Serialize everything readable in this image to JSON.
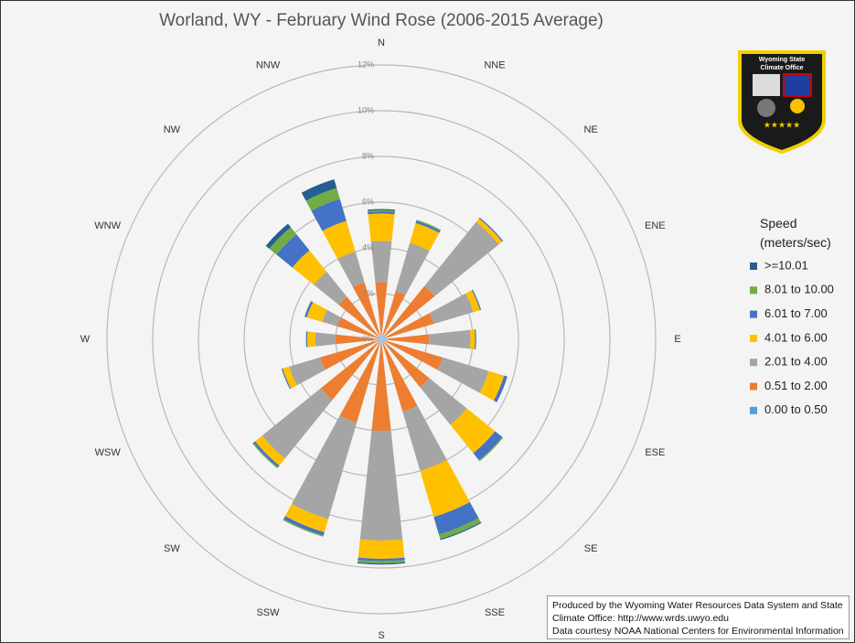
{
  "chart_data": {
    "type": "windrose",
    "title": "Worland, WY - February Wind Rose (2006-2015 Average)",
    "legend_title": "Speed (meters/sec)",
    "categories": [
      "N",
      "NNE",
      "NE",
      "ENE",
      "E",
      "ESE",
      "SE",
      "SSE",
      "S",
      "SSW",
      "SW",
      "WSW",
      "W",
      "WNW",
      "NW",
      "NNW"
    ],
    "rlim": [
      0,
      12
    ],
    "rticks": [
      {
        "value": 0,
        "label": "0%"
      },
      {
        "value": 2,
        "label": "2%"
      },
      {
        "value": 4,
        "label": "4%"
      },
      {
        "value": 6,
        "label": "6%"
      },
      {
        "value": 8,
        "label": "8%"
      },
      {
        "value": 10,
        "label": "10%"
      },
      {
        "value": 12,
        "label": "12%"
      }
    ],
    "grid": true,
    "series": [
      {
        "name": "0.00 to 0.50",
        "color": "#5b9bd5",
        "values": [
          0.2,
          0.2,
          0.2,
          0.2,
          0.2,
          0.2,
          0.2,
          0.2,
          0.2,
          0.2,
          0.2,
          0.2,
          0.2,
          0.2,
          0.2,
          0.2
        ]
      },
      {
        "name": "0.51 to 2.00",
        "color": "#ed7d31",
        "values": [
          2.3,
          2.0,
          2.8,
          2.2,
          1.9,
          2.6,
          2.5,
          3.1,
          3.8,
          3.6,
          3.2,
          2.6,
          1.8,
          1.8,
          2.2,
          2.4
        ]
      },
      {
        "name": "2.01 to 4.00",
        "color": "#a5a5a5",
        "values": [
          1.8,
          2.2,
          3.6,
          1.8,
          1.8,
          2.1,
          2.1,
          2.7,
          4.8,
          4.4,
          3.3,
          1.4,
          0.9,
          0.7,
          1.4,
          1.4
        ]
      },
      {
        "name": "4.01 to 6.00",
        "color": "#ffc000",
        "values": [
          1.2,
          0.9,
          0.2,
          0.3,
          0.2,
          0.7,
          1.6,
          2.1,
          0.8,
          0.6,
          0.4,
          0.3,
          0.35,
          0.7,
          1.2,
          1.4
        ]
      },
      {
        "name": "6.01 to 7.00",
        "color": "#4472c4",
        "values": [
          0.1,
          0.1,
          0.05,
          0.05,
          0.05,
          0.15,
          0.4,
          0.8,
          0.1,
          0.15,
          0.1,
          0.05,
          0.05,
          0.1,
          0.9,
          1.0
        ]
      },
      {
        "name": "8.01 to 10.00",
        "color": "#70ad47",
        "values": [
          0.05,
          0.05,
          0,
          0,
          0,
          0,
          0.05,
          0.2,
          0.1,
          0.05,
          0.05,
          0,
          0,
          0,
          0.4,
          0.5
        ]
      },
      {
        "name": ">=10.01",
        "color": "#255e91",
        "values": [
          0.05,
          0,
          0,
          0,
          0,
          0,
          0,
          0.05,
          0.05,
          0,
          0,
          0,
          0,
          0,
          0.2,
          0.4
        ]
      }
    ]
  },
  "logo": {
    "line1": "Wyoming State",
    "line2": "Climate Office"
  },
  "credits": [
    "Produced by the Wyoming Water Resources Data System and State",
    "Climate Office: http://www.wrds.uwyo.edu",
    "Data courtesy NOAA National Centers for Environmental Information"
  ]
}
